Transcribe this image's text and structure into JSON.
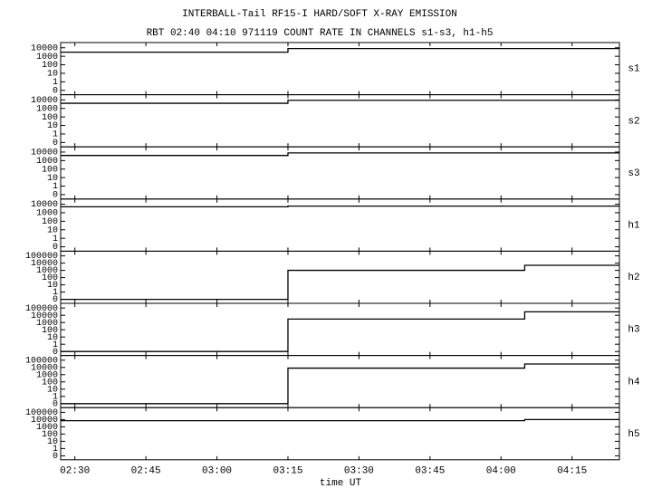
{
  "chart_data": [
    {
      "type": "line",
      "title": "INTERBALL-Tail RF15-I HARD/SOFT X-RAY EMISSION",
      "subtitle": "RBT 02:40 04:10 971119  COUNT RATE IN CHANNELS s1-s3, h1-h5",
      "ylabel": "s1",
      "log_scale": true,
      "x": [
        "02:27",
        "03:15",
        "03:15",
        "04:25"
      ],
      "values": [
        3000,
        3000,
        8000,
        8000
      ],
      "xlim": [
        "02:27",
        "04:25"
      ],
      "xticks": [
        "02:30",
        "02:45",
        "03:00",
        "03:15",
        "03:30",
        "03:45",
        "04:00",
        "04:15"
      ],
      "ylim": [
        0.05,
        25000
      ],
      "yticks": [
        10000,
        1000,
        100,
        10,
        1,
        {
          "value": 0.1,
          "label": "0"
        }
      ]
    },
    {
      "type": "line",
      "ylabel": "s2",
      "log_scale": true,
      "x": [
        "02:27",
        "03:15",
        "03:15",
        "04:25"
      ],
      "values": [
        4000,
        4000,
        9000,
        9000
      ],
      "xlim": [
        "02:27",
        "04:25"
      ],
      "xticks": [
        "02:30",
        "02:45",
        "03:00",
        "03:15",
        "03:30",
        "03:45",
        "04:00",
        "04:15"
      ],
      "ylim": [
        0.05,
        25000
      ],
      "yticks": [
        10000,
        1000,
        100,
        10,
        1,
        {
          "value": 0.1,
          "label": "0"
        }
      ]
    },
    {
      "type": "line",
      "ylabel": "s3",
      "log_scale": true,
      "x": [
        "02:27",
        "03:15",
        "03:15",
        "04:25"
      ],
      "values": [
        4000,
        4000,
        8000,
        8000
      ],
      "xlim": [
        "02:27",
        "04:25"
      ],
      "xticks": [
        "02:30",
        "02:45",
        "03:00",
        "03:15",
        "03:30",
        "03:45",
        "04:00",
        "04:15"
      ],
      "ylim": [
        0.05,
        25000
      ],
      "yticks": [
        10000,
        1000,
        100,
        10,
        1,
        {
          "value": 0.1,
          "label": "0"
        }
      ]
    },
    {
      "type": "line",
      "ylabel": "h1",
      "log_scale": true,
      "x": [
        "02:27",
        "03:15",
        "03:15",
        "04:25"
      ],
      "values": [
        5000,
        5000,
        6000,
        6000
      ],
      "xlim": [
        "02:27",
        "04:25"
      ],
      "xticks": [
        "02:30",
        "02:45",
        "03:00",
        "03:15",
        "03:30",
        "03:45",
        "04:00",
        "04:15"
      ],
      "ylim": [
        0.05,
        25000
      ],
      "yticks": [
        10000,
        1000,
        100,
        10,
        1,
        {
          "value": 0.1,
          "label": "0"
        }
      ]
    },
    {
      "type": "line",
      "ylabel": "h2",
      "log_scale": true,
      "x": [
        "02:27",
        "03:15",
        "03:15",
        "04:05",
        "04:05",
        "04:25"
      ],
      "values": [
        0.1,
        0.1,
        1000,
        1000,
        5000,
        5000
      ],
      "xlim": [
        "02:27",
        "04:25"
      ],
      "xticks": [
        "02:30",
        "02:45",
        "03:00",
        "03:15",
        "03:30",
        "03:45",
        "04:00",
        "04:15"
      ],
      "ylim": [
        0.05,
        250000
      ],
      "yticks": [
        100000,
        10000,
        1000,
        100,
        10,
        1,
        {
          "value": 0.1,
          "label": "0"
        }
      ]
    },
    {
      "type": "line",
      "ylabel": "h3",
      "log_scale": true,
      "x": [
        "02:27",
        "03:15",
        "03:15",
        "04:05",
        "04:05",
        "04:25"
      ],
      "values": [
        0.1,
        0.1,
        3000,
        3000,
        30000,
        30000
      ],
      "xlim": [
        "02:27",
        "04:25"
      ],
      "xticks": [
        "02:30",
        "02:45",
        "03:00",
        "03:15",
        "03:30",
        "03:45",
        "04:00",
        "04:15"
      ],
      "ylim": [
        0.05,
        250000
      ],
      "yticks": [
        100000,
        10000,
        1000,
        100,
        10,
        1,
        {
          "value": 0.1,
          "label": "0"
        }
      ]
    },
    {
      "type": "line",
      "ylabel": "h4",
      "log_scale": true,
      "x": [
        "02:27",
        "03:15",
        "03:15",
        "04:05",
        "04:05",
        "04:25"
      ],
      "values": [
        0.1,
        0.1,
        8000,
        8000,
        30000,
        30000
      ],
      "xlim": [
        "02:27",
        "04:25"
      ],
      "xticks": [
        "02:30",
        "02:45",
        "03:00",
        "03:15",
        "03:30",
        "03:45",
        "04:00",
        "04:15"
      ],
      "ylim": [
        0.05,
        250000
      ],
      "yticks": [
        100000,
        10000,
        1000,
        100,
        10,
        1,
        {
          "value": 0.1,
          "label": "0"
        }
      ]
    },
    {
      "type": "line",
      "ylabel": "h5",
      "xlabel": "time UT",
      "log_scale": true,
      "x": [
        "02:27",
        "04:05",
        "04:05",
        "04:25"
      ],
      "values": [
        7000,
        7000,
        10000,
        10000
      ],
      "xlim": [
        "02:27",
        "04:25"
      ],
      "xticks": [
        "02:30",
        "02:45",
        "03:00",
        "03:15",
        "03:30",
        "03:45",
        "04:00",
        "04:15"
      ],
      "ylim": [
        0.05,
        250000
      ],
      "yticks": [
        100000,
        10000,
        1000,
        100,
        10,
        1,
        {
          "value": 0.1,
          "label": "0"
        }
      ]
    }
  ]
}
